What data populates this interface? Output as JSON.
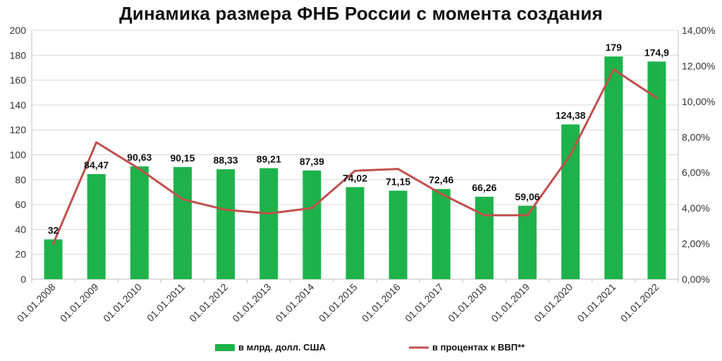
{
  "chart_data": {
    "type": "bar",
    "title": "Динамика размера ФНБ России с момента создания",
    "categories": [
      "01.01.2008",
      "01.01.2009",
      "01.01.2010",
      "01.01.2011",
      "01.01.2012",
      "01.01.2013",
      "01.01.2014",
      "01.01.2015",
      "01.01.2016",
      "01.01.2017",
      "01.01.2018",
      "01.01.2019",
      "01.01.2020",
      "01.01.2021",
      "01.01.2022"
    ],
    "series": [
      {
        "name": "в млрд. долл. США",
        "type": "bar",
        "axis": "left",
        "color": "#1db34a",
        "values": [
          32,
          84.47,
          90.63,
          90.15,
          88.33,
          89.21,
          87.39,
          74.02,
          71.15,
          72.46,
          66.26,
          59.06,
          124.38,
          179,
          174.9
        ],
        "labels": [
          "32",
          "84,47",
          "90,63",
          "90,15",
          "88,33",
          "89,21",
          "87,39",
          "74,02",
          "71,15",
          "72,46",
          "66,26",
          "59,06",
          "124,38",
          "179",
          "174,9"
        ]
      },
      {
        "name": "в процентах к ВВП**",
        "type": "line",
        "axis": "right",
        "color": "#c0504d",
        "values": [
          2.0,
          7.7,
          6.2,
          4.5,
          3.9,
          3.7,
          4.0,
          6.1,
          6.2,
          4.8,
          3.6,
          3.6,
          7.0,
          11.8,
          10.2
        ]
      }
    ],
    "y_left": {
      "min": 0,
      "max": 200,
      "step": 20,
      "tick_labels": [
        "0",
        "20",
        "40",
        "60",
        "80",
        "100",
        "120",
        "140",
        "160",
        "180",
        "200"
      ]
    },
    "y_right": {
      "min": 0,
      "max": 14,
      "step": 2,
      "tick_labels": [
        "0,00%",
        "2,00%",
        "4,00%",
        "6,00%",
        "8,00%",
        "10,00%",
        "12,00%",
        "14,00%"
      ]
    },
    "grid": true,
    "legend_position": "bottom",
    "xlabel": "",
    "ylabel": ""
  }
}
